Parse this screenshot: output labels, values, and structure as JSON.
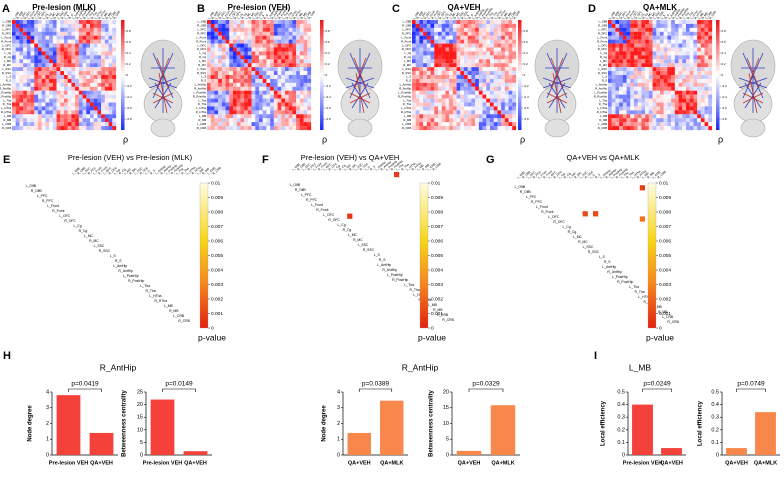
{
  "panel_letters": [
    "A",
    "B",
    "C",
    "D",
    "E",
    "F",
    "G",
    "H",
    "I"
  ],
  "regions": [
    "L_OlfB",
    "R_OlfB",
    "L_PFC",
    "R_PFC",
    "L_Front",
    "R_Front",
    "L_OFC",
    "R_OFC",
    "L_Cg",
    "R_Cg",
    "L_MC",
    "R_MC",
    "L_SSC",
    "R_SSC",
    "L_S",
    "R_S",
    "L_AntHip",
    "R_AntHip",
    "L_PostHip",
    "R_PostHip",
    "L_Tha",
    "R_Tha",
    "L_HTha",
    "R_HTha",
    "L_MB",
    "R_MB",
    "L_CRB",
    "R_CRB"
  ],
  "heatmaps": [
    {
      "title": "Pre-lesion (MLK)"
    },
    {
      "title": "Pre-lesion (VEH)"
    },
    {
      "title": "QA+VEH"
    },
    {
      "title": "QA+MLK"
    }
  ],
  "rho_colorbar": {
    "label": "ρ",
    "lim": [
      -1,
      1
    ],
    "ticks": [
      0.8,
      0.6,
      0.4,
      0.2,
      0,
      -0.2,
      -0.4,
      -0.6,
      -0.8
    ]
  },
  "pvalue_maps": [
    {
      "title": "Pre-lesion (VEH) vs Pre-lesion (MLK)",
      "cells": []
    },
    {
      "title": "Pre-lesion (VEH) vs QA+VEH",
      "cells": [
        {
          "row": 0,
          "col": 20,
          "p": 0.0008
        },
        {
          "row": 8,
          "col": 11,
          "p": 0.0006
        }
      ]
    },
    {
      "title": "QA+VEH vs QA+MLK",
      "cells": [
        {
          "row": 1,
          "col": 24,
          "p": 0.0009
        },
        {
          "row": 6,
          "col": 13,
          "p": 0.0012
        },
        {
          "row": 6,
          "col": 15,
          "p": 0.0012
        },
        {
          "row": 7,
          "col": 24,
          "p": 0.0024
        }
      ]
    }
  ],
  "pvalue_colorbar": {
    "label": "p-value",
    "lim": [
      0,
      0.01
    ],
    "ticks": [
      0.01,
      0.009,
      0.008,
      0.007,
      0.006,
      0.005,
      0.004,
      0.003,
      0.002,
      0.001,
      0
    ]
  },
  "bar_titles": [
    "R_AntHip",
    "R_AntHip",
    "L_MB"
  ],
  "chart_data": [
    {
      "type": "bar",
      "ylabel": "Node degree",
      "categories": [
        "Pre-lesion VEH",
        "QA+VEH"
      ],
      "values": [
        3.8,
        1.4
      ],
      "colors": [
        "#f4413a",
        "#f4413a"
      ],
      "ylim": [
        0,
        4
      ],
      "yticks": [
        0,
        1,
        2,
        3,
        4
      ],
      "annotation": "p=0.0419"
    },
    {
      "type": "bar",
      "ylabel": "Betweenness centrality",
      "categories": [
        "Pre-lesion VEH",
        "QA+VEH"
      ],
      "values": [
        22,
        1.5
      ],
      "colors": [
        "#f4413a",
        "#f4413a"
      ],
      "ylim": [
        0,
        25
      ],
      "yticks": [
        0,
        5,
        10,
        15,
        20,
        25
      ],
      "annotation": "p=0.0149"
    },
    {
      "type": "bar",
      "ylabel": "Node degree",
      "categories": [
        "QA+VEH",
        "QA+MLK"
      ],
      "values": [
        1.4,
        3.45
      ],
      "colors": [
        "#f7874a",
        "#f7874a"
      ],
      "ylim": [
        0,
        4
      ],
      "yticks": [
        0,
        1,
        2,
        3,
        4
      ],
      "annotation": "p=0.0389"
    },
    {
      "type": "bar",
      "ylabel": "Betweenness centrality",
      "categories": [
        "QA+VEH",
        "QA+MLK"
      ],
      "values": [
        1.3,
        15.8
      ],
      "colors": [
        "#f7874a",
        "#f7874a"
      ],
      "ylim": [
        0,
        20
      ],
      "yticks": [
        0,
        5,
        10,
        15,
        20
      ],
      "annotation": "p=0.0329"
    },
    {
      "type": "bar",
      "ylabel": "Local efficiency",
      "categories": [
        "Pre-lesion VEH",
        "QA+VEH"
      ],
      "values": [
        0.4,
        0.055
      ],
      "colors": [
        "#f4413a",
        "#f4413a"
      ],
      "ylim": [
        0,
        0.5
      ],
      "yticks": [
        0,
        0.1,
        0.2,
        0.3,
        0.4,
        0.5
      ],
      "annotation": "p=0.0249"
    },
    {
      "type": "bar",
      "ylabel": "Local efficiency",
      "categories": [
        "QA+VEH",
        "QA+MLK"
      ],
      "values": [
        0.055,
        0.34
      ],
      "colors": [
        "#f7874a",
        "#f7874a"
      ],
      "ylim": [
        0,
        0.5
      ],
      "yticks": [
        0,
        0.1,
        0.2,
        0.3,
        0.4,
        0.5
      ],
      "annotation": "p=0.0749"
    }
  ]
}
